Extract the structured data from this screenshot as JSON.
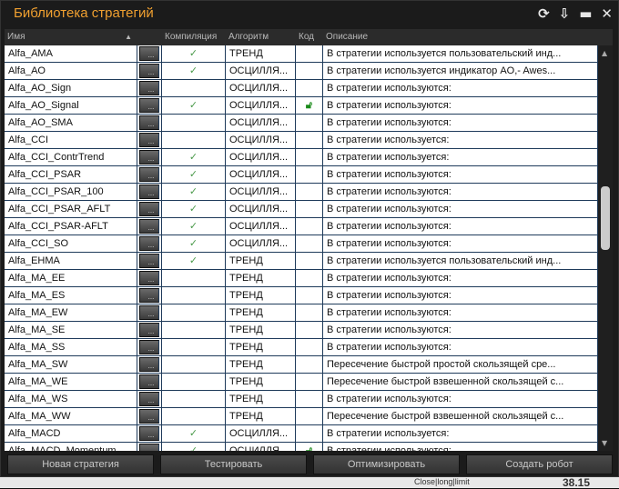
{
  "window": {
    "title": "Библиотека стратегий",
    "icons": [
      "refresh-icon",
      "download-icon",
      "minimize-icon",
      "close-icon"
    ]
  },
  "columns": {
    "name": "Имя",
    "compile": "Компиляция",
    "algorithm": "Алгоритм",
    "code": "Код",
    "description": "Описание",
    "sort": "▲"
  },
  "rows": [
    {
      "name": "Alfa_AMA",
      "compiled": true,
      "algorithm": "ТРЕНД",
      "locked": false,
      "description": "В стратегии используется пользовательский инд..."
    },
    {
      "name": "Alfa_AO",
      "compiled": true,
      "algorithm": "ОСЦИЛЛЯ...",
      "locked": false,
      "description": "В стратегии используется индикатор AO,- Awes..."
    },
    {
      "name": "Alfa_AO_Sign",
      "compiled": false,
      "algorithm": "ОСЦИЛЛЯ...",
      "locked": false,
      "description": "В стратегии используются:"
    },
    {
      "name": "Alfa_AO_Signal",
      "compiled": true,
      "algorithm": "ОСЦИЛЛЯ...",
      "locked": true,
      "description": "В стратегии используются:"
    },
    {
      "name": "Alfa_AO_SMA",
      "compiled": false,
      "algorithm": "ОСЦИЛЛЯ...",
      "locked": false,
      "description": "В стратегии используются:"
    },
    {
      "name": "Alfa_CCI",
      "compiled": false,
      "algorithm": "ОСЦИЛЛЯ...",
      "locked": false,
      "description": "В стратегии используется:"
    },
    {
      "name": "Alfa_CCI_ContrTrend",
      "compiled": true,
      "algorithm": "ОСЦИЛЛЯ...",
      "locked": false,
      "description": "В стратегии используется:"
    },
    {
      "name": "Alfa_CCI_PSAR",
      "compiled": true,
      "algorithm": "ОСЦИЛЛЯ...",
      "locked": false,
      "description": "В стратегии используются:"
    },
    {
      "name": "Alfa_CCI_PSAR_100",
      "compiled": true,
      "algorithm": "ОСЦИЛЛЯ...",
      "locked": false,
      "description": "В стратегии используются:"
    },
    {
      "name": "Alfa_CCI_PSAR_AFLT",
      "compiled": true,
      "algorithm": "ОСЦИЛЛЯ...",
      "locked": false,
      "description": "В стратегии используются:"
    },
    {
      "name": "Alfa_CCI_PSAR-AFLT",
      "compiled": true,
      "algorithm": "ОСЦИЛЛЯ...",
      "locked": false,
      "description": "В стратегии используются:"
    },
    {
      "name": "Alfa_CCI_SO",
      "compiled": true,
      "algorithm": "ОСЦИЛЛЯ...",
      "locked": false,
      "description": "В стратегии используются:"
    },
    {
      "name": "Alfa_EHMA",
      "compiled": true,
      "algorithm": "ТРЕНД",
      "locked": false,
      "description": "В стратегии используется пользовательский инд..."
    },
    {
      "name": "Alfa_MA_EE",
      "compiled": false,
      "algorithm": "ТРЕНД",
      "locked": false,
      "description": "В стратегии используются:"
    },
    {
      "name": "Alfa_MA_ES",
      "compiled": false,
      "algorithm": "ТРЕНД",
      "locked": false,
      "description": "В стратегии используются:"
    },
    {
      "name": "Alfa_MA_EW",
      "compiled": false,
      "algorithm": "ТРЕНД",
      "locked": false,
      "description": "В стратегии используются:"
    },
    {
      "name": "Alfa_MA_SE",
      "compiled": false,
      "algorithm": "ТРЕНД",
      "locked": false,
      "description": "В стратегии используются:"
    },
    {
      "name": "Alfa_MA_SS",
      "compiled": false,
      "algorithm": "ТРЕНД",
      "locked": false,
      "description": "В стратегии используются:"
    },
    {
      "name": "Alfa_MA_SW",
      "compiled": false,
      "algorithm": "ТРЕНД",
      "locked": false,
      "description": "Пересечение быстрой простой скользящей сре..."
    },
    {
      "name": "Alfa_MA_WE",
      "compiled": false,
      "algorithm": "ТРЕНД",
      "locked": false,
      "description": "Пересечение быстрой взвешенной скользящей с..."
    },
    {
      "name": "Alfa_MA_WS",
      "compiled": false,
      "algorithm": "ТРЕНД",
      "locked": false,
      "description": "В стратегии используются:"
    },
    {
      "name": "Alfa_MA_WW",
      "compiled": false,
      "algorithm": "ТРЕНД",
      "locked": false,
      "description": "Пересечение быстрой взвешенной скользящей с..."
    },
    {
      "name": "Alfa_MACD",
      "compiled": true,
      "algorithm": "ОСЦИЛЛЯ...",
      "locked": false,
      "description": "В стратегии используется:"
    },
    {
      "name": "Alfa_MACD_Momentum",
      "compiled": true,
      "algorithm": "ОСЦИЛЛЯ...",
      "locked": true,
      "description": "В стратегии используются:"
    }
  ],
  "row_button_label": "...",
  "buttons": {
    "new": "Новая стратегия",
    "test": "Тестировать",
    "optimize": "Оптимизировать",
    "create_robot": "Создать робот"
  },
  "background": {
    "order_type": "Close|long|limit",
    "value": "38.15"
  },
  "colors": {
    "title": "#f0a030",
    "check": "#4a9a4a",
    "lock": "#1a8a1a"
  }
}
